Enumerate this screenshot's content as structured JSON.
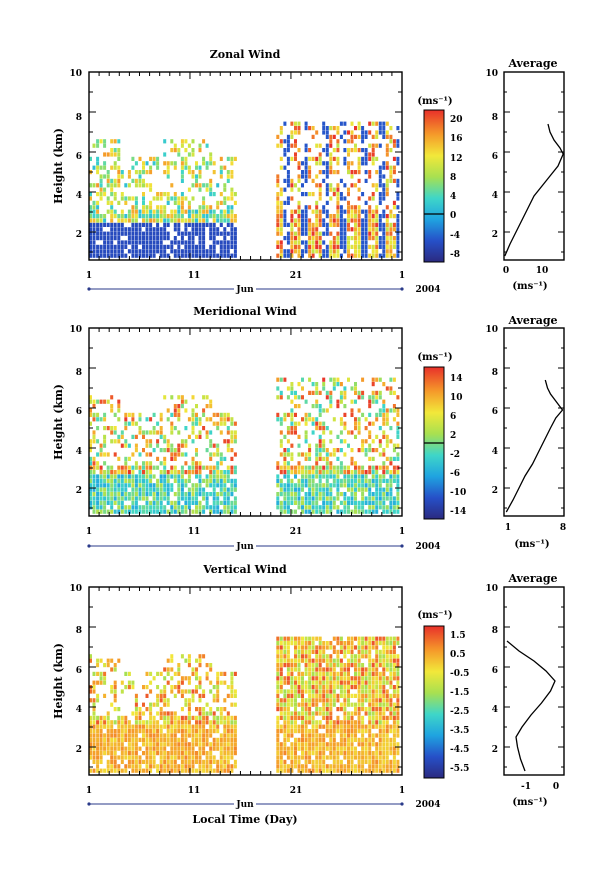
{
  "chart_data": [
    {
      "type": "heatmap",
      "title": "Zonal Wind",
      "ylabel": "Height (km)",
      "xlabel": "",
      "xlim": [
        1,
        32
      ],
      "ylim": [
        0.6,
        10
      ],
      "xticks": [
        "1",
        "11",
        "21",
        "1"
      ],
      "yticks": [
        "2",
        "4",
        "6",
        "8",
        "10"
      ],
      "month_label": "Jun",
      "year_label": "2004",
      "colorbar": {
        "label": "(ms⁻¹)",
        "ticks": [
          "20",
          "16",
          "12",
          "8",
          "4",
          "0",
          "-4",
          "-8"
        ],
        "range": [
          -10,
          22
        ],
        "line_at": 0
      },
      "data_gap_days": [
        15.5,
        19.5
      ],
      "profile": {
        "title": "Average",
        "xlabel": "(ms⁻¹)",
        "xticks": [
          "0",
          "10"
        ],
        "xlim": [
          0,
          15
        ],
        "points": [
          [
            0.2,
            0.8
          ],
          [
            1.5,
            1.4
          ],
          [
            3.0,
            2.0
          ],
          [
            4.5,
            2.6
          ],
          [
            6.0,
            3.2
          ],
          [
            7.5,
            3.8
          ],
          [
            9.5,
            4.3
          ],
          [
            11.5,
            4.8
          ],
          [
            13.5,
            5.3
          ],
          [
            14.8,
            5.9
          ],
          [
            14.0,
            6.2
          ],
          [
            12.5,
            6.6
          ],
          [
            11.5,
            7.0
          ],
          [
            11.0,
            7.4
          ]
        ]
      }
    },
    {
      "type": "heatmap",
      "title": "Meridional Wind",
      "ylabel": "Height (km)",
      "xlabel": "",
      "xlim": [
        1,
        32
      ],
      "ylim": [
        0.6,
        10
      ],
      "xticks": [
        "1",
        "11",
        "21",
        "1"
      ],
      "yticks": [
        "2",
        "4",
        "6",
        "8",
        "10"
      ],
      "month_label": "Jun",
      "year_label": "2004",
      "colorbar": {
        "label": "(ms⁻¹)",
        "ticks": [
          "14",
          "10",
          "6",
          "2",
          "-2",
          "-6",
          "-10",
          "-14"
        ],
        "range": [
          -16,
          16
        ],
        "line_at": 0
      },
      "data_gap_days": [
        15.5,
        19.5
      ],
      "profile": {
        "title": "Average",
        "xlabel": "(ms⁻¹)",
        "xticks": [
          "1",
          "8"
        ],
        "xlim": [
          0,
          8
        ],
        "points": [
          [
            0.3,
            0.8
          ],
          [
            1.2,
            1.4
          ],
          [
            2.0,
            2.0
          ],
          [
            2.8,
            2.6
          ],
          [
            3.8,
            3.2
          ],
          [
            4.6,
            3.8
          ],
          [
            5.4,
            4.4
          ],
          [
            6.2,
            5.0
          ],
          [
            6.9,
            5.5
          ],
          [
            7.8,
            5.9
          ],
          [
            7.0,
            6.3
          ],
          [
            6.2,
            6.7
          ],
          [
            5.8,
            7.0
          ],
          [
            5.5,
            7.4
          ]
        ]
      }
    },
    {
      "type": "heatmap",
      "title": "Vertical Wind",
      "ylabel": "Height (km)",
      "xlabel": "Local Time (Day)",
      "xlim": [
        1,
        32
      ],
      "ylim": [
        0.6,
        10
      ],
      "xticks": [
        "1",
        "11",
        "21",
        "1"
      ],
      "yticks": [
        "2",
        "4",
        "6",
        "8",
        "10"
      ],
      "month_label": "Jun",
      "year_label": "2004",
      "colorbar": {
        "label": "(ms⁻¹)",
        "ticks": [
          "1.5",
          "0.5",
          "-0.5",
          "-1.5",
          "-2.5",
          "-3.5",
          "-4.5",
          "-5.5"
        ],
        "range": [
          -6,
          2
        ]
      },
      "data_gap_days": [
        15.5,
        19.5
      ],
      "profile": {
        "title": "Average",
        "xlabel": "(ms⁻¹)",
        "xticks": [
          "-1",
          "0"
        ],
        "xlim": [
          -1.6,
          0.4
        ],
        "points": [
          [
            -0.9,
            0.8
          ],
          [
            -1.05,
            1.4
          ],
          [
            -1.15,
            2.0
          ],
          [
            -1.2,
            2.5
          ],
          [
            -1.0,
            3.0
          ],
          [
            -0.7,
            3.6
          ],
          [
            -0.35,
            4.2
          ],
          [
            -0.05,
            4.8
          ],
          [
            0.1,
            5.3
          ],
          [
            -0.2,
            5.8
          ],
          [
            -0.6,
            6.3
          ],
          [
            -1.1,
            6.8
          ],
          [
            -1.5,
            7.3
          ]
        ]
      }
    }
  ]
}
